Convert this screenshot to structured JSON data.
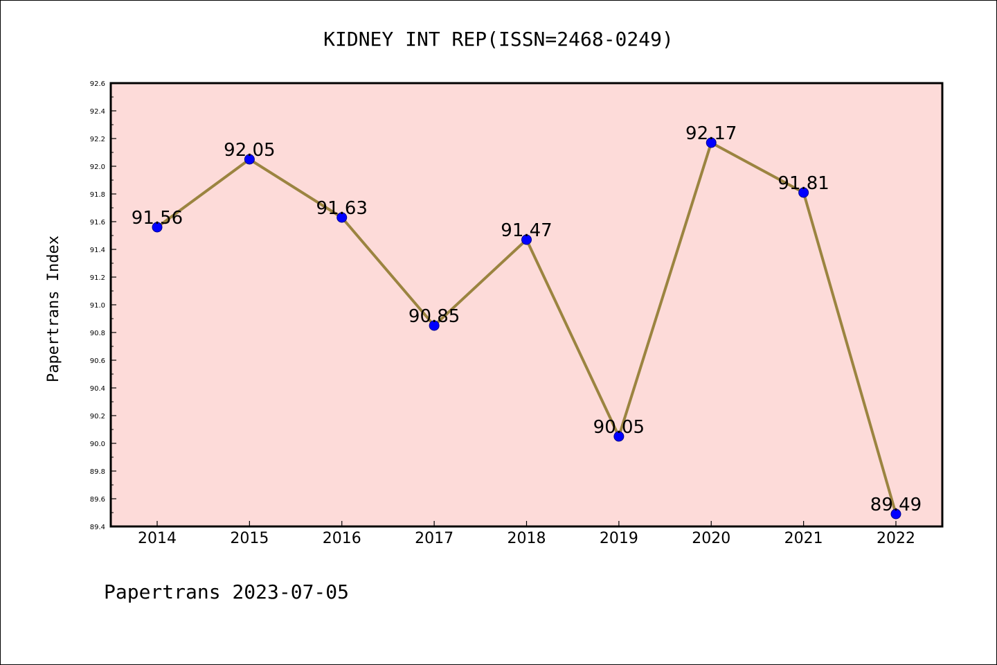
{
  "chart_data": {
    "type": "line",
    "title": "KIDNEY INT REP(ISSN=2468-0249)",
    "xlabel": "",
    "ylabel": "Papertrans Index",
    "categories": [
      "2014",
      "2015",
      "2016",
      "2017",
      "2018",
      "2019",
      "2020",
      "2021",
      "2022"
    ],
    "series": [
      {
        "values": [
          91.56,
          92.05,
          91.63,
          90.85,
          91.47,
          90.05,
          92.17,
          91.81,
          89.49
        ],
        "labels": [
          "91.56",
          "92.05",
          "91.63",
          "90.85",
          "91.47",
          "90.05",
          "92.17",
          "91.81",
          "89.49"
        ]
      }
    ],
    "ylim": [
      89.4,
      92.6
    ],
    "yticks": [
      "89.4",
      "89.6",
      "89.8",
      "90.0",
      "90.2",
      "90.4",
      "90.6",
      "90.8",
      "91.0",
      "91.2",
      "91.4",
      "91.6",
      "91.8",
      "92.0",
      "92.2",
      "92.4",
      "92.6"
    ],
    "grid": false,
    "colors": {
      "plot_background": "#fddbd9",
      "line": "#9b8440",
      "marker": "#0000ff",
      "marker_edge": "#00008b"
    }
  },
  "footer": "Papertrans 2023-07-05"
}
